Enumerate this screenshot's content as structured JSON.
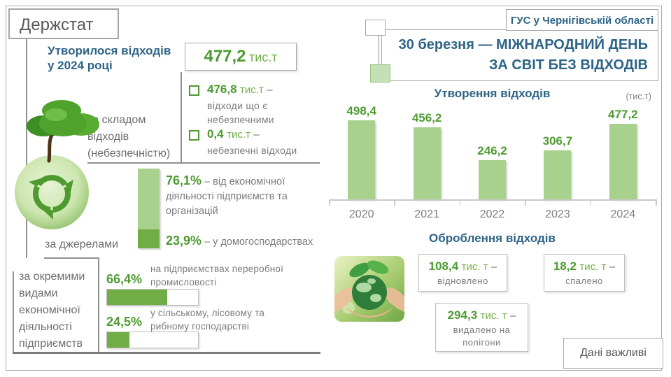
{
  "strings": {
    "dash": "–"
  },
  "header": {
    "logo": "Держстат",
    "region": "ГУС у Чернігівській області",
    "title_line1": "30 березня — МІЖНАРОДНИЙ ДЕНЬ",
    "title_line2": "ЗА СВІТ БЕЗ ВІДХОДІВ"
  },
  "generated": {
    "label_line1": "Утворилося відходів",
    "label_line2": "у 2024 році",
    "value": "477,2",
    "unit": "тис.т"
  },
  "composition": {
    "section_label": "за складом відходів (небезпечністю)",
    "items": [
      {
        "value": "476,8",
        "unit": "тис.т",
        "desc": "відходи що є небезпечними"
      },
      {
        "value": "0,4",
        "unit": "тис.т",
        "desc": "небезпечні відходи"
      }
    ]
  },
  "sources": {
    "section_label": "за джерелами",
    "items": [
      {
        "percent": "76,1%",
        "share": 76.1,
        "desc": "– від економічної діяльності підприємств та організацій"
      },
      {
        "percent": "23,9%",
        "share": 23.9,
        "desc": "– у домогосподарствах"
      }
    ]
  },
  "by_activity": {
    "section_label": "за окремими видами економічної діяльності підприємств",
    "items": [
      {
        "percent": "66,4%",
        "value": 66.4,
        "desc": "на підприємствах переробної промисловості"
      },
      {
        "percent": "24,5%",
        "value": 24.5,
        "desc": "у сільському, лісовому та рибному господарстві"
      }
    ]
  },
  "chart_data": {
    "type": "bar",
    "title": "Утворення відходів",
    "unit_note": "(тис.т)",
    "categories": [
      "2020",
      "2021",
      "2022",
      "2023",
      "2024"
    ],
    "values": [
      498.4,
      456.2,
      246.2,
      306.7,
      477.2
    ],
    "labels": [
      "498,4",
      "456,2",
      "246,2",
      "306,7",
      "477,2"
    ],
    "ylim": [
      0,
      520
    ],
    "grid": false,
    "legend": "none",
    "bar_color": "#A9D18E"
  },
  "treatment": {
    "title": "Оброблення відходів",
    "items": [
      {
        "value": "108,4",
        "unit": "тис. т",
        "desc": "відновлено"
      },
      {
        "value": "18,2",
        "unit": "тис. т",
        "desc": "спалено"
      },
      {
        "value": "294,3",
        "unit": "тис. т",
        "desc": "видалено на полігони"
      }
    ]
  },
  "footer": {
    "note": "Дані важливі"
  },
  "colors": {
    "accent_blue": "#2E6486",
    "accent_green": "#4D9B31",
    "light_green_bar": "#A9D18E",
    "dark_green_bar": "#70AD47",
    "gray_text": "#7C7C7C",
    "border_gray": "#A6A6A6"
  }
}
